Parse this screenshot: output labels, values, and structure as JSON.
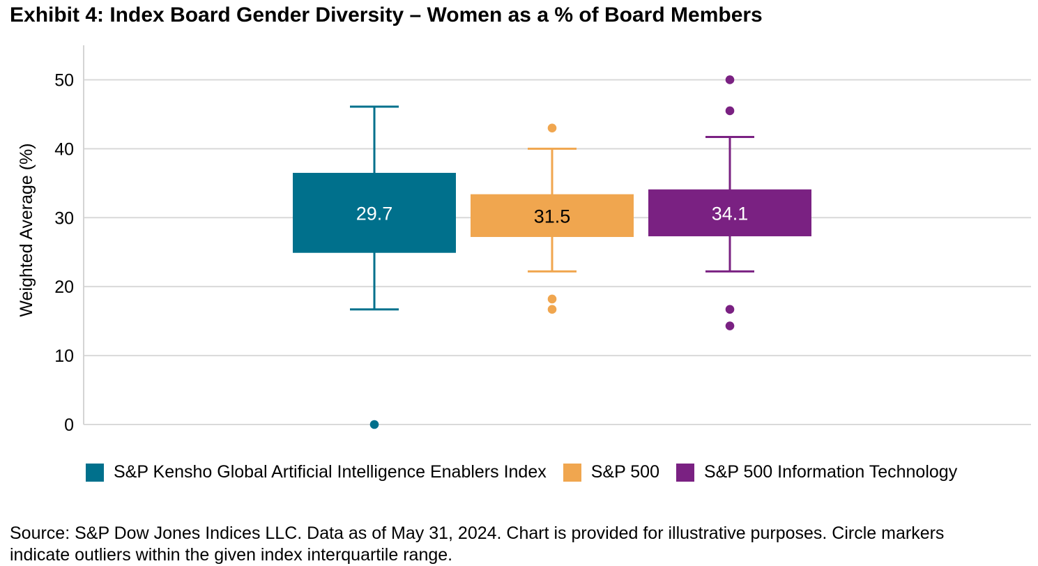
{
  "header": {
    "title": "Exhibit 4: Index Board Gender Diversity – Women as a % of Board Members"
  },
  "chart_data": {
    "type": "boxplot",
    "title": "Exhibit 4: Index Board Gender Diversity – Women as a % of Board Members",
    "xlabel": "",
    "ylabel": "Weighted Average (%)",
    "ylim": [
      0,
      55
    ],
    "yticks": [
      0,
      10,
      20,
      30,
      40,
      50
    ],
    "grid": true,
    "legend_position": "bottom",
    "colors": {
      "grid": "#D9D9D9",
      "axis": "#D4D4D4",
      "tick_text": "#000000"
    },
    "series": [
      {
        "name": "S&P Kensho Global Artificial Intelligence Enablers Index",
        "color": "#00708C",
        "label": "29.7",
        "label_color": "#FFFFFF",
        "whisker_high": 46.1,
        "q3": 36.5,
        "q1": 24.9,
        "whisker_low": 16.7,
        "outliers": [
          0
        ]
      },
      {
        "name": "S&P 500",
        "color": "#F0A64F",
        "label": "31.5",
        "label_color": "#000000",
        "whisker_high": 40.0,
        "q3": 33.4,
        "q1": 27.2,
        "whisker_low": 22.2,
        "outliers": [
          43.0,
          18.2,
          16.7
        ]
      },
      {
        "name": "S&P 500 Information Technology",
        "color": "#7A2182",
        "label": "34.1",
        "label_color": "#FFFFFF",
        "whisker_high": 41.7,
        "q3": 34.1,
        "q1": 27.3,
        "whisker_low": 22.2,
        "outliers": [
          50.0,
          45.5,
          16.7,
          14.3
        ]
      }
    ]
  },
  "footer": {
    "source_line1": "Source: S&P Dow Jones Indices LLC. Data as of May 31, 2024. Chart is provided for illustrative purposes. Circle markers",
    "source_line2": "indicate outliers within the given index interquartile range."
  }
}
